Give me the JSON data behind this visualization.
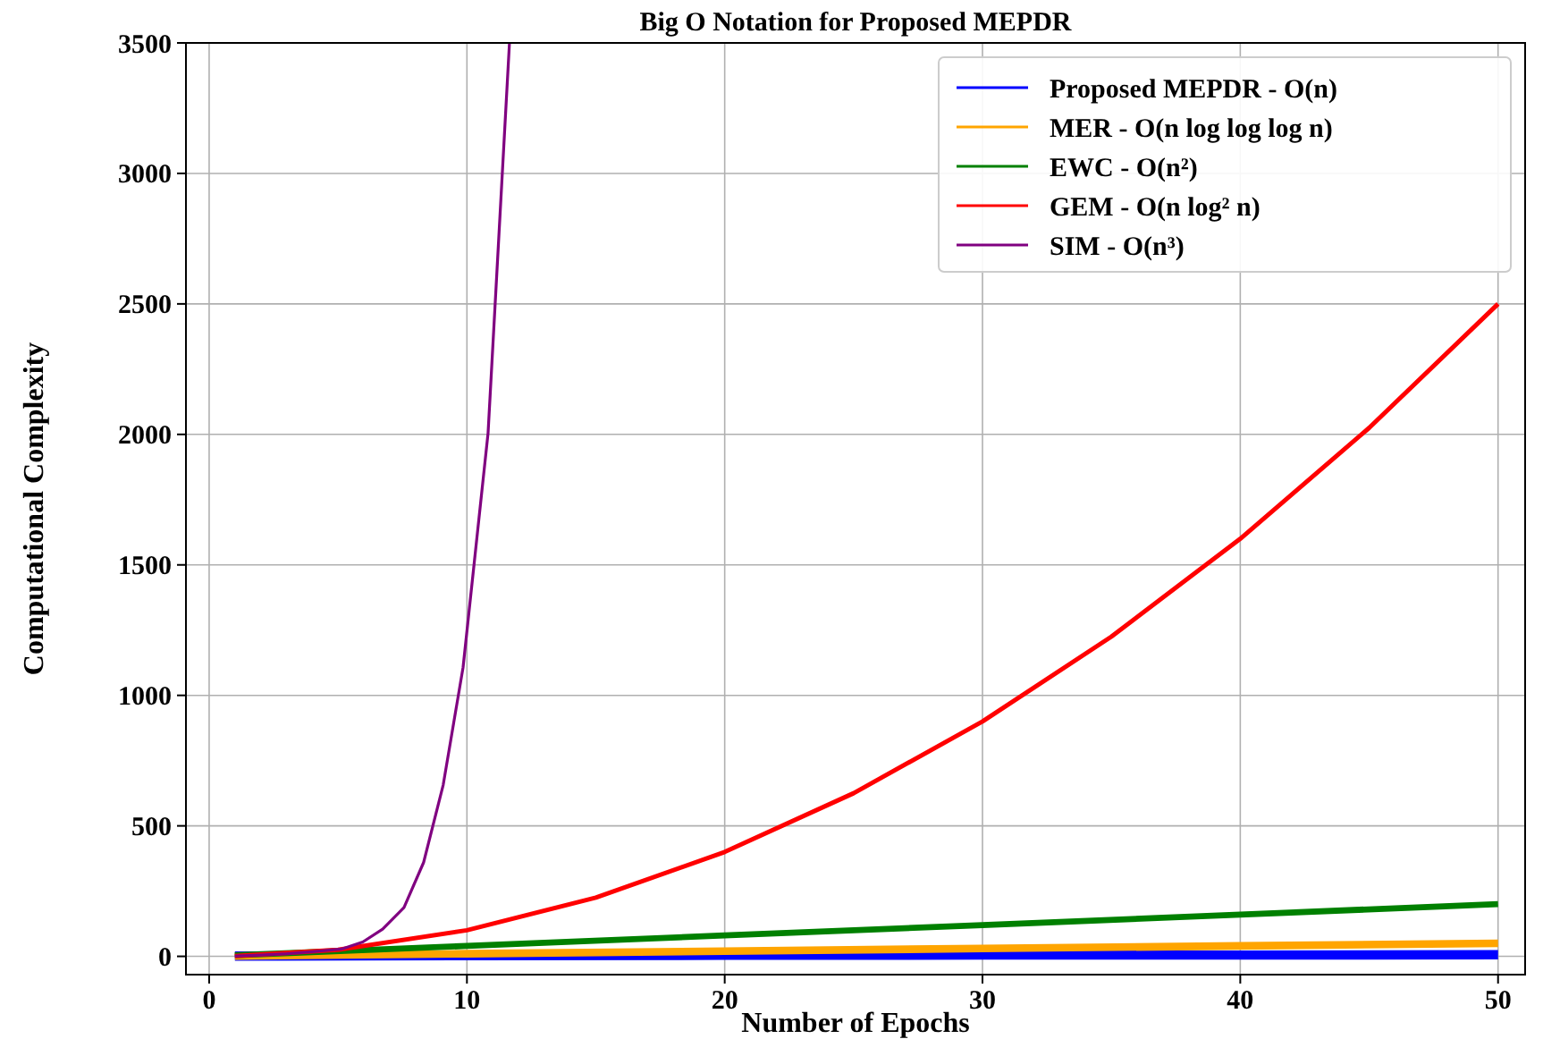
{
  "chart_data": {
    "type": "line",
    "title": "Big O Notation for Proposed MEPDR",
    "xlabel": "Number of Epochs",
    "ylabel": "Computational Complexity",
    "xlim": [
      -0.9,
      51.05
    ],
    "ylim": [
      -70,
      3500
    ],
    "xticks": [
      0,
      10,
      20,
      30,
      40,
      50
    ],
    "yticks": [
      0,
      500,
      1000,
      1500,
      2000,
      2500,
      3000,
      3500
    ],
    "grid": true,
    "legend": "top right",
    "line_style": "solid",
    "marker": "none",
    "series": [
      {
        "name": "Proposed MEPDR - O(n)",
        "color": "#0000ff",
        "x": [
          1,
          10,
          20,
          30,
          40,
          50
        ],
        "values": [
          1,
          3,
          4,
          5,
          5,
          6
        ]
      },
      {
        "name": "MER - O(n log log log n)",
        "color": "#ffa500",
        "x": [
          1,
          10,
          20,
          30,
          40,
          50
        ],
        "values": [
          1,
          10,
          20,
          30,
          40,
          50
        ]
      },
      {
        "name": "EWC -  O(n²)",
        "color": "#008000",
        "x": [
          1,
          10,
          20,
          30,
          40,
          50
        ],
        "values": [
          4,
          40,
          80,
          120,
          160,
          200
        ]
      },
      {
        "name": "GEM - O(n log² n)",
        "color": "#ff0000",
        "x": [
          1,
          5,
          10,
          15,
          20,
          25,
          30,
          35,
          40,
          45,
          50
        ],
        "values": [
          1,
          25,
          100,
          225,
          400,
          625,
          900,
          1225,
          1600,
          2025,
          2500
        ]
      },
      {
        "name": "SIM - O(n³)",
        "color": "#800080",
        "x": [
          1,
          2,
          3,
          4,
          5.13,
          5.96,
          6.73,
          7.56,
          8.32,
          9.08,
          9.85,
          10.82,
          11.65
        ],
        "values": [
          1,
          5,
          10,
          18,
          28,
          55,
          104,
          187,
          360,
          657,
          1107,
          2005,
          3500
        ]
      }
    ]
  }
}
